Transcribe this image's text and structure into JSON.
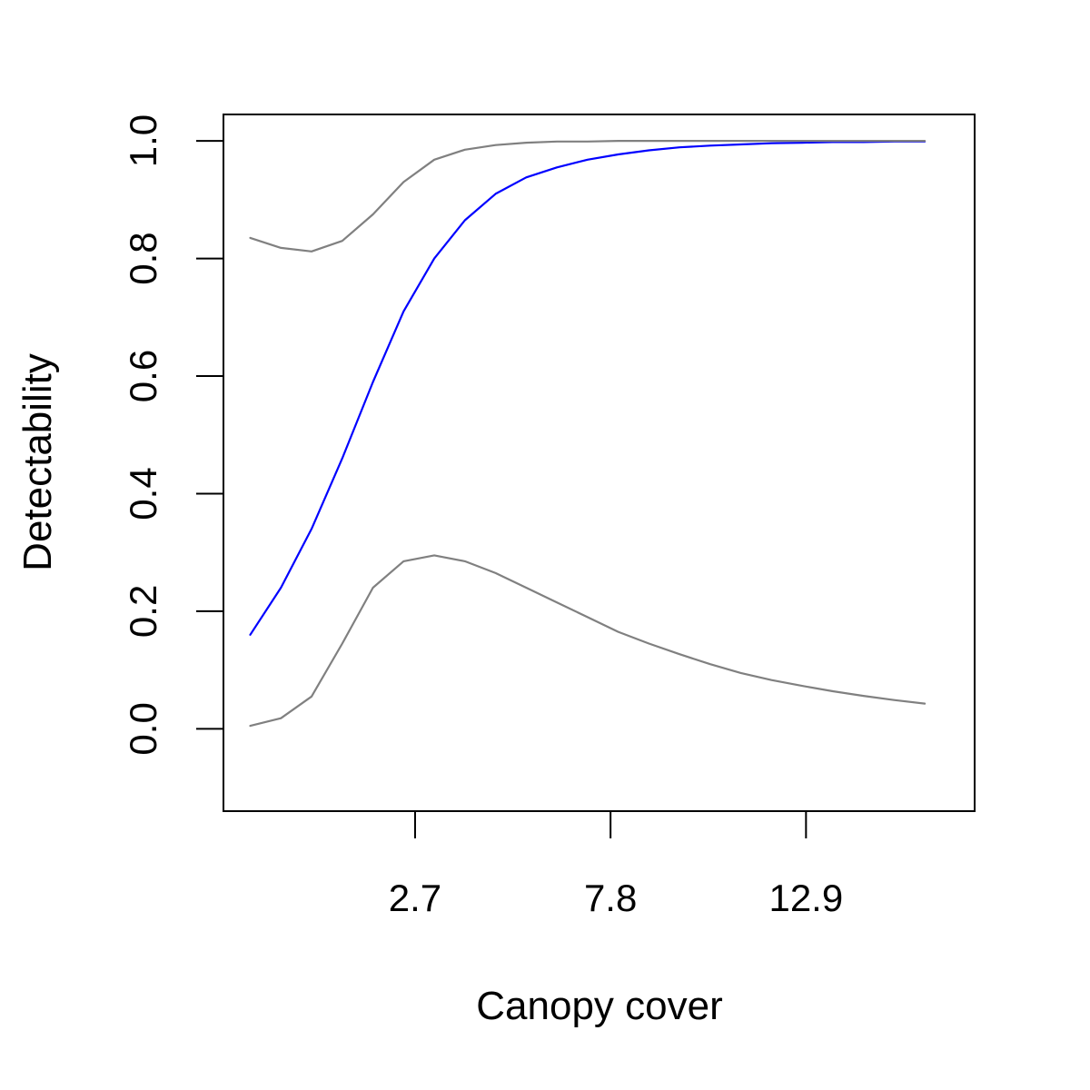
{
  "chart_data": {
    "type": "line",
    "title": "",
    "xlabel": "Canopy cover",
    "ylabel": "Detectability",
    "xlim": [
      -2.3,
      17.3
    ],
    "ylim": [
      -0.14,
      1.045
    ],
    "x_ticks": [
      2.7,
      7.8,
      12.9
    ],
    "x_tick_labels": [
      "2.7",
      "7.8",
      "12.9"
    ],
    "y_ticks": [
      0,
      0.2,
      0.4,
      0.6,
      0.8,
      1.0
    ],
    "y_tick_labels": [
      "0.0",
      "0.2",
      "0.4",
      "0.6",
      "0.8",
      "1.0"
    ],
    "grid": false,
    "series": [
      {
        "color": "#0000ff",
        "x": [
          -1.6,
          -0.8,
          0.0,
          0.8,
          1.6,
          2.4,
          3.2,
          4.0,
          4.8,
          5.6,
          6.4,
          7.2,
          8.0,
          8.8,
          9.6,
          10.4,
          11.2,
          12.0,
          12.8,
          13.6,
          14.4,
          15.2,
          16.0
        ],
        "y": [
          0.16,
          0.24,
          0.34,
          0.46,
          0.59,
          0.71,
          0.8,
          0.865,
          0.91,
          0.938,
          0.955,
          0.968,
          0.977,
          0.984,
          0.989,
          0.992,
          0.994,
          0.996,
          0.997,
          0.998,
          0.998,
          0.999,
          0.999
        ]
      },
      {
        "color": "#808080",
        "x": [
          -1.6,
          -0.8,
          0.0,
          0.8,
          1.6,
          2.4,
          3.2,
          4.0,
          4.8,
          5.6,
          6.4,
          7.2,
          8.0,
          8.8,
          9.6,
          10.4,
          11.2,
          12.0,
          12.8,
          13.6,
          14.4,
          15.2,
          16.0
        ],
        "y": [
          0.835,
          0.818,
          0.812,
          0.83,
          0.875,
          0.93,
          0.968,
          0.985,
          0.993,
          0.997,
          0.999,
          0.999,
          1.0,
          1.0,
          1.0,
          1.0,
          1.0,
          1.0,
          1.0,
          1.0,
          1.0,
          1.0,
          1.0
        ]
      },
      {
        "color": "#808080",
        "x": [
          -1.6,
          -0.8,
          0.0,
          0.8,
          1.6,
          2.4,
          3.2,
          4.0,
          4.8,
          5.6,
          6.4,
          7.2,
          8.0,
          8.8,
          9.6,
          10.4,
          11.2,
          12.0,
          12.8,
          13.6,
          14.4,
          15.2,
          16.0
        ],
        "y": [
          0.005,
          0.018,
          0.055,
          0.145,
          0.24,
          0.285,
          0.295,
          0.285,
          0.265,
          0.24,
          0.215,
          0.19,
          0.165,
          0.145,
          0.127,
          0.11,
          0.095,
          0.083,
          0.073,
          0.064,
          0.056,
          0.049,
          0.043
        ]
      }
    ]
  }
}
